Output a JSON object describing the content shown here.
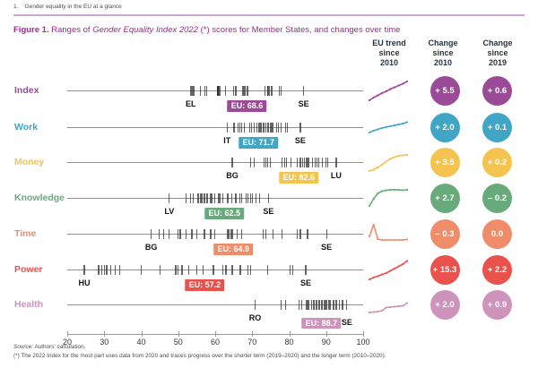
{
  "page_header": "1.    Gender equality in the EU at a glance",
  "figure_title": {
    "prefix": "Figure 1.",
    "body_pre": " Ranges of ",
    "italic": "Gender Equality Index 2022",
    "body_post": " (*) scores for Member States, and changes over time"
  },
  "columns": {
    "trend": {
      "line1": "EU trend",
      "line2": "since",
      "line3": "2010"
    },
    "change2010": {
      "line1": "Change",
      "line2": "since",
      "line3": "2010"
    },
    "change2019": {
      "line1": "Change",
      "line2": "since",
      "line3": "2019"
    }
  },
  "footer": {
    "source_label": "Source:",
    "source_text": " Authors' calculation.",
    "note": "(*) The 2022 Index for the most part uses data from 2020 and traces progress over the shorter term (2019–2020) and the longer term (2010–2020)."
  },
  "chart_data": {
    "type": "scatter",
    "subtype": "1D strip plots per domain (Member State scores) with EU trend sparklines and change badges",
    "axis": {
      "min": 20,
      "max": 100,
      "ticks": [
        20,
        30,
        40,
        50,
        60,
        70,
        80,
        90,
        100
      ]
    },
    "legend_position": "none",
    "rows": [
      {
        "label": "Index",
        "color": "#9b4a98",
        "eu_label": "EU: 68.6",
        "eu_value": 68.6,
        "min_country": "EL",
        "min_value": 53.4,
        "max_country": "SE",
        "max_value": 83.9,
        "ticks": [
          53.4,
          53.7,
          54.2,
          56.0,
          57.2,
          57.7,
          60.6,
          60.7,
          60.7,
          61.0,
          61.4,
          62.8,
          65.0,
          65.6,
          67.5,
          68.0,
          68.7,
          73.5,
          74.2,
          74.3,
          74.6,
          75.1,
          75.4,
          77.3,
          77.8,
          83.9
        ],
        "trend": [
          23,
          20,
          17.5,
          15,
          13,
          10.5,
          8.5,
          6.5,
          4.5,
          2
        ],
        "change_2010": "+ 5.5",
        "change_2019": "+ 0.6",
        "stagger": false
      },
      {
        "label": "Work",
        "color": "#41a5c6",
        "eu_label": "EU: 71.7",
        "eu_value": 71.7,
        "min_country": "IT",
        "min_value": 63.2,
        "max_country": "SE",
        "max_value": 83.0,
        "ticks": [
          63.2,
          65.1,
          66.1,
          66.6,
          67.1,
          67.8,
          69.3,
          69.8,
          70.5,
          71.2,
          71.7,
          72.1,
          72.4,
          72.9,
          73.2,
          73.7,
          74.1,
          74.5,
          74.9,
          75.3,
          75.6,
          76.6,
          77.1,
          77.8,
          79.0,
          79.5,
          83.0
        ],
        "trend": [
          18,
          16,
          14.5,
          13,
          12,
          11,
          10,
          9,
          8,
          6.5
        ],
        "change_2010": "+ 2.0",
        "change_2019": "+ 0.1",
        "stagger": false
      },
      {
        "label": "Money",
        "color": "#f4c350",
        "eu_label": "EU: 82.6",
        "eu_value": 82.6,
        "min_country": "BG",
        "min_value": 64.6,
        "max_country": "LU",
        "max_value": 92.7,
        "ticks": [
          64.6,
          69.5,
          70.5,
          73.2,
          73.7,
          74.1,
          74.9,
          78.0,
          78.8,
          79.3,
          80.5,
          82.2,
          82.9,
          83.2,
          83.7,
          84.1,
          84.6,
          85.0,
          85.4,
          86.3,
          87.1,
          87.5,
          88.0,
          89.0,
          90.0,
          90.5,
          92.7
        ],
        "trend": [
          22,
          20.5,
          18,
          15,
          11.5,
          8.5,
          6.5,
          5,
          4.5,
          4
        ],
        "change_2010": "+ 3.5",
        "change_2019": "+ 0.2",
        "stagger": false
      },
      {
        "label": "Knowledge",
        "color": "#69aa7c",
        "eu_label": "EU: 62.5",
        "eu_value": 62.5,
        "min_country": "LV",
        "min_value": 47.6,
        "max_country": "SE",
        "max_value": 74.4,
        "ticks": [
          47.6,
          52.1,
          53.4,
          54.1,
          55.4,
          56.1,
          56.5,
          57.1,
          57.8,
          58.8,
          59.1,
          59.8,
          61.0,
          61.4,
          62.0,
          63.4,
          64.4,
          65.6,
          66.6,
          67.1,
          68.3,
          68.8,
          69.5,
          70.1,
          71.1,
          72.0,
          74.4
        ],
        "trend": [
          21,
          13,
          7,
          4.5,
          3.5,
          3,
          3,
          3,
          3.5,
          3
        ],
        "change_2010": "+ 2.7",
        "change_2019": "– 0.2",
        "stagger": false
      },
      {
        "label": "Time",
        "color": "#ef8d6b",
        "eu_label": "EU: 64.9",
        "eu_value": 64.9,
        "min_country": "BG",
        "min_value": 42.7,
        "max_country": "SE",
        "max_value": 90.1,
        "ticks": [
          42.7,
          44.9,
          46.1,
          47.6,
          50.0,
          50.4,
          50.7,
          52.2,
          53.7,
          55.0,
          57.1,
          58.8,
          59.8,
          63.4,
          63.7,
          64.2,
          64.6,
          65.9,
          67.1,
          72.9,
          73.7,
          75.6,
          78.0,
          82.2,
          83.0,
          85.0,
          90.1
        ],
        "trend": [
          15,
          2,
          18,
          19,
          19,
          19,
          19,
          19,
          19,
          18.5
        ],
        "change_2010": "– 0.3",
        "change_2019": "0.0",
        "stagger": false
      },
      {
        "label": "Power",
        "color": "#e9514d",
        "eu_label": "EU: 57.2",
        "eu_value": 57.2,
        "min_country": "HU",
        "min_value": 24.6,
        "max_country": "SE",
        "max_value": 84.5,
        "ticks": [
          24.6,
          28.5,
          29.3,
          30.0,
          30.7,
          31.7,
          32.9,
          34.1,
          40.0,
          45.1,
          49.3,
          50.0,
          51.0,
          52.9,
          55.1,
          56.8,
          59.5,
          62.0,
          62.9,
          64.6,
          66.8,
          68.8,
          69.5,
          74.1,
          80.2,
          81.0,
          84.5
        ],
        "trend": [
          23,
          21,
          19.5,
          17.5,
          16,
          13.5,
          11,
          8.5,
          6,
          2.5
        ],
        "change_2010": "+ 15.3",
        "change_2019": "+ 2.2",
        "stagger": false
      },
      {
        "label": "Health",
        "color": "#ce93bb",
        "eu_label": "EU: 88.7",
        "eu_value": 88.7,
        "min_country": "RO",
        "min_value": 70.8,
        "max_country": "SE",
        "max_value": 95.6,
        "ticks": [
          70.8,
          77.8,
          79.0,
          82.7,
          83.4,
          84.6,
          85.0,
          85.4,
          86.1,
          86.5,
          86.8,
          87.2,
          87.6,
          88.0,
          88.3,
          88.7,
          89.0,
          89.4,
          89.8,
          90.2,
          90.6,
          91.0,
          92.0,
          92.7,
          93.5,
          94.4,
          95.6
        ],
        "trend": [
          21,
          20.5,
          20,
          19,
          15.5,
          15,
          14.5,
          14,
          13.5,
          10.5
        ],
        "change_2010": "+ 2.0",
        "change_2019": "+ 0.9",
        "stagger": true
      }
    ]
  }
}
